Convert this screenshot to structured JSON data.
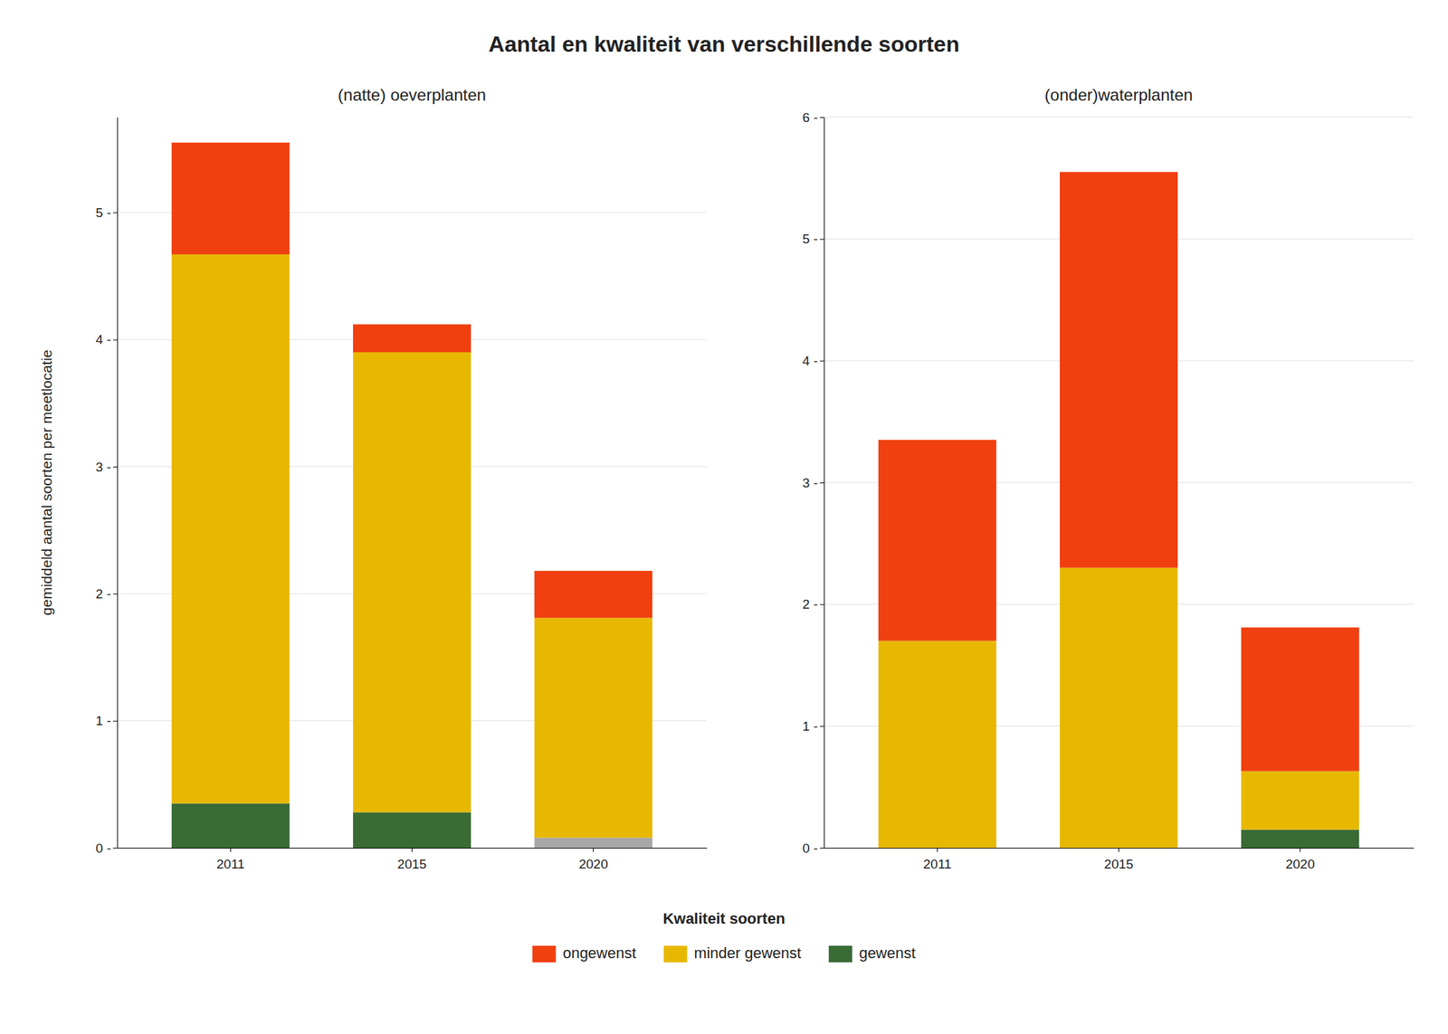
{
  "chart_data": [
    {
      "type": "bar",
      "stacked": true,
      "title": "Aantal en kwaliteit van verschillende soorten",
      "subtitle": "(natte) oeverplanten",
      "ylabel": "gemiddeld aantal soorten per meetlocatie",
      "legend_title": "Kwaliteit soorten",
      "legend": "bottom",
      "grid": true,
      "categories": [
        "2011",
        "2015",
        "2020"
      ],
      "series": [
        {
          "name": "gewenst",
          "color": "#3A6B35",
          "colors": [
            "#3A6B35",
            "#3A6B35",
            "#A8A8A8"
          ],
          "values": [
            0.35,
            0.28,
            0.08
          ]
        },
        {
          "name": "minder gewenst",
          "color": "#E8B800",
          "values": [
            4.32,
            3.62,
            1.73
          ]
        },
        {
          "name": "ongewenst",
          "color": "#F04010",
          "values": [
            0.88,
            0.22,
            0.37
          ]
        }
      ],
      "ylim": [
        0,
        5.75
      ],
      "yticks": [
        {
          "value": 0,
          "label": "0 -"
        },
        {
          "value": 1,
          "label": "1 -"
        },
        {
          "value": 2,
          "label": "2 -"
        },
        {
          "value": 3,
          "label": "3 -"
        },
        {
          "value": 4,
          "label": "4 -"
        },
        {
          "value": 5,
          "label": "5 -"
        }
      ]
    },
    {
      "type": "bar",
      "stacked": true,
      "subtitle": "(onder)waterplanten",
      "grid": true,
      "categories": [
        "2011",
        "2015",
        "2020"
      ],
      "series": [
        {
          "name": "gewenst",
          "color": "#3A6B35",
          "values": [
            0.0,
            0.0,
            0.15
          ]
        },
        {
          "name": "minder gewenst",
          "color": "#E8B800",
          "values": [
            1.7,
            2.3,
            0.48
          ]
        },
        {
          "name": "ongewenst",
          "color": "#F04010",
          "values": [
            1.65,
            3.25,
            1.18
          ]
        }
      ],
      "ylim": [
        0,
        6
      ],
      "yticks": [
        {
          "value": 0,
          "label": "0 -"
        },
        {
          "value": 1,
          "label": "1 -"
        },
        {
          "value": 2,
          "label": "2 -"
        },
        {
          "value": 3,
          "label": "3 -"
        },
        {
          "value": 4,
          "label": "4 -"
        },
        {
          "value": 5,
          "label": "5 -"
        },
        {
          "value": 6,
          "label": "6 -"
        }
      ]
    }
  ]
}
